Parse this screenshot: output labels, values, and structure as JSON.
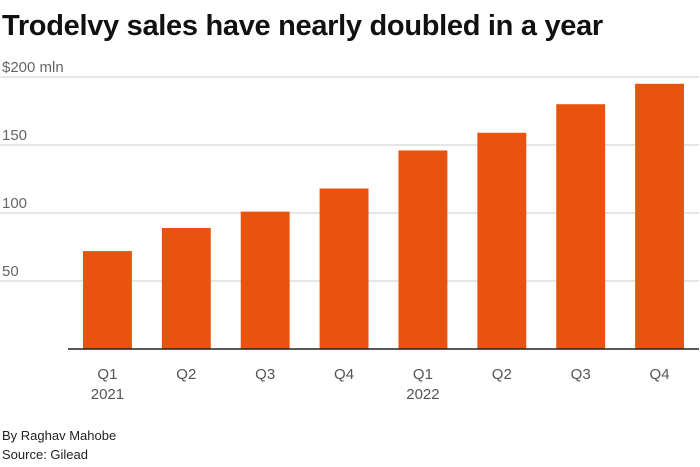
{
  "chart_data": {
    "type": "bar",
    "title": "Trodelvy sales have nearly doubled in a year",
    "categories": [
      "Q1",
      "Q2",
      "Q3",
      "Q4",
      "Q1",
      "Q2",
      "Q3",
      "Q4"
    ],
    "year_labels": [
      "2021",
      "",
      "",
      "",
      "2022",
      "",
      "",
      ""
    ],
    "values": [
      72,
      89,
      101,
      118,
      146,
      159,
      180,
      195
    ],
    "ylim": [
      0,
      200
    ],
    "yticks": [
      50,
      100,
      150,
      200
    ],
    "ytick_labels": [
      "50",
      "100",
      "150",
      "$200 mln"
    ],
    "grid": true,
    "bar_color": "#e8540f"
  },
  "footer": {
    "byline": "By Raghav Mahobe",
    "source": "Source: Gilead"
  }
}
